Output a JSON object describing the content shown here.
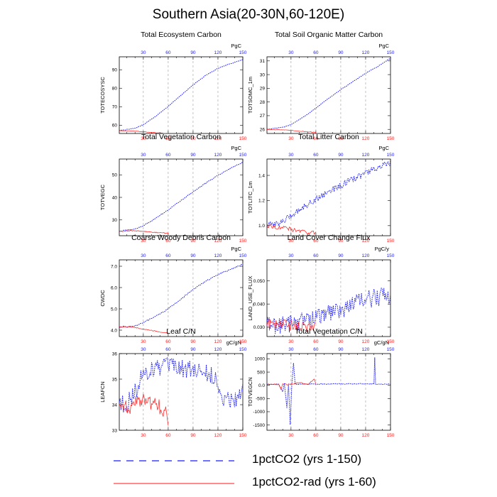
{
  "title": "Southern Asia(20-30N,60-120E)",
  "legend": [
    {
      "label": "1pctCO2 (yrs 1-150)",
      "color": "#1a1aff",
      "dash": true
    },
    {
      "label": "1pctCO2-rad (yrs 1-60)",
      "color": "#ff1a1a",
      "dash": false
    }
  ],
  "colors": {
    "series_a": "#1a1aff",
    "series_b": "#ff1a1a",
    "grid": "#9a9a9a"
  },
  "chart_data": [
    {
      "type": "line",
      "title": "Total Ecosystem Carbon",
      "ylabel": "TOTECOSYSC",
      "unit": "PgC",
      "xlim": [
        1,
        150
      ],
      "ylim": [
        55.5,
        97
      ],
      "yticks": [
        60,
        70,
        80,
        90
      ],
      "xticks": [
        30,
        60,
        90,
        120,
        150
      ],
      "series": [
        {
          "name": "1pctCO2 (yrs 1-150)",
          "x": [
            1,
            20,
            30,
            45,
            60,
            75,
            90,
            105,
            120,
            135,
            150
          ],
          "y": [
            57.0,
            58.3,
            60.3,
            64.8,
            70.2,
            76.0,
            81.8,
            86.9,
            90.7,
            93.3,
            95.5
          ],
          "noise": 0.15
        },
        {
          "name": "1pctCO2-rad (yrs 1-60)",
          "x": [
            1,
            15,
            30,
            45,
            60
          ],
          "y": [
            57.0,
            56.9,
            56.4,
            55.9,
            55.5
          ],
          "noise": 0.1
        }
      ]
    },
    {
      "type": "line",
      "title": "Total Soil Organic Matter Carbon",
      "ylabel": "TOTSOMC_1m",
      "unit": "PgC",
      "xlim": [
        1,
        150
      ],
      "ylim": [
        25.7,
        31.3
      ],
      "yticks": [
        26.0,
        27.0,
        28.0,
        29.0,
        30.0,
        31.0
      ],
      "xticks": [
        30,
        60,
        90,
        120,
        150
      ],
      "series": [
        {
          "name": "1pctCO2 (yrs 1-150)",
          "x": [
            1,
            20,
            30,
            45,
            60,
            75,
            90,
            105,
            120,
            135,
            150
          ],
          "y": [
            26.0,
            26.15,
            26.35,
            26.9,
            27.55,
            28.25,
            28.9,
            29.5,
            30.1,
            30.6,
            31.2
          ],
          "noise": 0.02
        },
        {
          "name": "1pctCO2-rad (yrs 1-60)",
          "x": [
            1,
            15,
            30,
            45,
            60
          ],
          "y": [
            26.0,
            25.98,
            25.92,
            25.85,
            25.78
          ],
          "noise": 0.02
        }
      ]
    },
    {
      "type": "line",
      "title": "Total Vegetation Carbon",
      "ylabel": "TOTVEGC",
      "unit": "PgC",
      "xlim": [
        1,
        150
      ],
      "ylim": [
        23,
        57
      ],
      "yticks": [
        30,
        40,
        50
      ],
      "xticks": [
        30,
        60,
        90,
        120,
        150
      ],
      "series": [
        {
          "name": "1pctCO2 (yrs 1-150)",
          "x": [
            1,
            20,
            30,
            45,
            60,
            75,
            90,
            105,
            120,
            135,
            150
          ],
          "y": [
            25.0,
            26.0,
            27.4,
            30.7,
            34.5,
            38.5,
            42.5,
            46.3,
            49.7,
            52.8,
            55.6
          ],
          "noise": 0.2
        },
        {
          "name": "1pctCO2-rad (yrs 1-60)",
          "x": [
            1,
            15,
            30,
            45,
            60
          ],
          "y": [
            25.0,
            25.2,
            25.0,
            24.4,
            24.1
          ],
          "noise": 0.2
        }
      ]
    },
    {
      "type": "line",
      "title": "Total Litter Carbon",
      "ylabel": "TOTLITC_1m",
      "unit": "PgC",
      "xlim": [
        1,
        150
      ],
      "ylim": [
        0.92,
        1.53
      ],
      "yticks": [
        1.0,
        1.2,
        1.4
      ],
      "xticks": [
        30,
        60,
        90,
        120,
        150
      ],
      "series": [
        {
          "name": "1pctCO2 (yrs 1-150)",
          "x": [
            1,
            20,
            30,
            45,
            60,
            75,
            90,
            105,
            120,
            135,
            150
          ],
          "y": [
            1.0,
            1.03,
            1.08,
            1.15,
            1.21,
            1.27,
            1.32,
            1.37,
            1.42,
            1.46,
            1.5
          ],
          "noise": 0.025
        },
        {
          "name": "1pctCO2-rad (yrs 1-60)",
          "x": [
            1,
            15,
            30,
            45,
            60
          ],
          "y": [
            1.0,
            0.99,
            0.97,
            0.95,
            0.94
          ],
          "noise": 0.018
        }
      ]
    },
    {
      "type": "line",
      "title": "Coarse Woody Debris Carbon",
      "ylabel": "CWDC",
      "unit": "PgC",
      "xlim": [
        1,
        150
      ],
      "ylim": [
        3.7,
        7.3
      ],
      "yticks": [
        4.0,
        5.0,
        6.0,
        7.0
      ],
      "xticks": [
        30,
        60,
        90,
        120,
        150
      ],
      "series": [
        {
          "name": "1pctCO2 (yrs 1-150)",
          "x": [
            1,
            20,
            30,
            45,
            60,
            75,
            90,
            105,
            120,
            135,
            150
          ],
          "y": [
            4.15,
            4.2,
            4.35,
            4.65,
            5.0,
            5.45,
            5.9,
            6.3,
            6.6,
            6.85,
            7.1
          ],
          "noise": 0.03
        },
        {
          "name": "1pctCO2-rad (yrs 1-60)",
          "x": [
            1,
            15,
            30,
            45,
            60
          ],
          "y": [
            4.15,
            4.15,
            4.05,
            3.95,
            3.85
          ],
          "noise": 0.02
        }
      ]
    },
    {
      "type": "line",
      "title": "Land Cover Change Flux",
      "ylabel": "LAND_USE_FLUX",
      "unit": "PgC/y",
      "xlim": [
        1,
        150
      ],
      "ylim": [
        0.026,
        0.059
      ],
      "yticks": [
        0.03,
        0.04,
        0.05
      ],
      "xticks": [
        30,
        60,
        90,
        120,
        150
      ],
      "series": [
        {
          "name": "1pctCO2 (yrs 1-150)",
          "x": [
            1,
            20,
            30,
            45,
            60,
            75,
            90,
            105,
            120,
            135,
            150
          ],
          "y": [
            0.031,
            0.031,
            0.032,
            0.033,
            0.034,
            0.036,
            0.038,
            0.04,
            0.042,
            0.043,
            0.044
          ],
          "noise": 0.004
        },
        {
          "name": "1pctCO2-rad (yrs 1-60)",
          "x": [
            1,
            15,
            30,
            45,
            60
          ],
          "y": [
            0.031,
            0.031,
            0.031,
            0.03,
            0.03
          ],
          "noise": 0.0025
        }
      ]
    },
    {
      "type": "line",
      "title": "Leaf C/N",
      "ylabel": "LEAFCN",
      "unit": "gC/gN",
      "xlim": [
        1,
        150
      ],
      "ylim": [
        33.0,
        36.0
      ],
      "yticks": [
        33.0,
        34.0,
        35.0,
        36.0
      ],
      "xticks": [
        30,
        60,
        90,
        120,
        150
      ],
      "series": [
        {
          "name": "1pctCO2 (yrs 1-150)",
          "x": [
            1,
            10,
            20,
            30,
            40,
            60,
            80,
            100,
            115,
            125,
            140,
            150
          ],
          "y": [
            34.1,
            34.0,
            34.5,
            35.2,
            35.4,
            35.5,
            35.4,
            35.3,
            35.1,
            34.3,
            34.2,
            34.6
          ],
          "noise": 0.35
        },
        {
          "name": "1pctCO2-rad (yrs 1-60)",
          "x": [
            1,
            10,
            20,
            30,
            40,
            50,
            58,
            60
          ],
          "y": [
            34.0,
            33.9,
            34.0,
            34.2,
            34.1,
            33.9,
            33.7,
            33.2
          ],
          "noise": 0.3
        }
      ]
    },
    {
      "type": "line",
      "title": "Total Vegetation C/N",
      "ylabel": "TOTVEGCN",
      "unit": "gC/gN",
      "xlim": [
        1,
        150
      ],
      "ylim": [
        -1700,
        1200
      ],
      "yticks": [
        -1500,
        -1000,
        -500,
        0,
        500,
        1000
      ],
      "xticks": [
        30,
        60,
        90,
        120,
        150
      ],
      "series": [
        {
          "name": "1pctCO2 (yrs 1-150)",
          "x": [
            1,
            15,
            20,
            22,
            25,
            27,
            29,
            31,
            33,
            35,
            60,
            130,
            131,
            132,
            150
          ],
          "y": [
            40,
            40,
            -250,
            80,
            -850,
            60,
            -1480,
            50,
            850,
            40,
            50,
            60,
            1050,
            40,
            50
          ],
          "noise": 15
        },
        {
          "name": "1pctCO2-rad (yrs 1-60)",
          "x": [
            1,
            15,
            18,
            20,
            25,
            30,
            40,
            50,
            55,
            58,
            60
          ],
          "y": [
            40,
            40,
            -150,
            60,
            30,
            50,
            100,
            30,
            150,
            250,
            80
          ],
          "noise": 25
        }
      ]
    }
  ]
}
